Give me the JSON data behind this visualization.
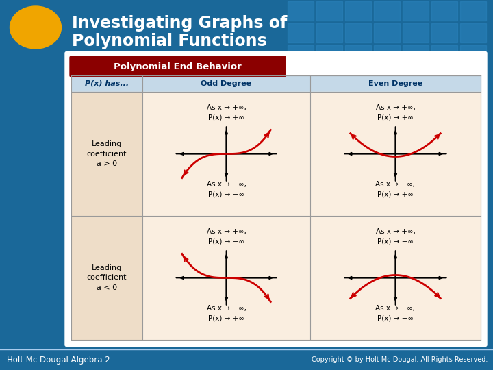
{
  "title_line1": "Investigating Graphs of",
  "title_line2": "Polynomial Functions",
  "title_color": "#FFFFFF",
  "header_bg": "#1a6899",
  "footer_left": "Holt Mc.Dougal Algebra 2",
  "footer_right": "Copyright © by Holt Mc Dougal. All Rights Reserved.",
  "table_header_text": "Polynomial End Behavior",
  "table_header_bg": "#8B0000",
  "col0_header": "P(x) has...",
  "col1_header": "Odd Degree",
  "col2_header": "Even Degree",
  "col_header_bg": "#c5d9e8",
  "col_header_color": "#003366",
  "row1_label": "Leading\ncoefficient\na > 0",
  "row2_label": "Leading\ncoefficient\na < 0",
  "cell_bg": "#faeee0",
  "row_label_bg": "#eeddc8",
  "red_color": "#cc0000",
  "ellipse_color": "#f0a500",
  "grid_tile_color": "#2a82bb"
}
